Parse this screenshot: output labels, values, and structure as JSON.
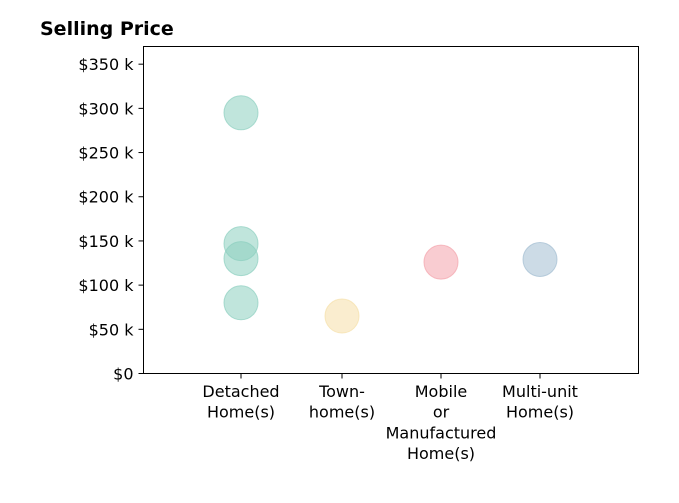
{
  "chart_data": {
    "type": "scatter",
    "title": "Selling Price",
    "xlabel": "",
    "ylabel": "",
    "ylim": [
      0,
      370000
    ],
    "y_ticks": [
      {
        "value": 0,
        "label": "$0"
      },
      {
        "value": 50000,
        "label": "$50 k"
      },
      {
        "value": 100000,
        "label": "$100 k"
      },
      {
        "value": 150000,
        "label": "$150 k"
      },
      {
        "value": 200000,
        "label": "$200 k"
      },
      {
        "value": 250000,
        "label": "$250 k"
      },
      {
        "value": 300000,
        "label": "$300 k"
      },
      {
        "value": 350000,
        "label": "$350 k"
      }
    ],
    "categories": [
      {
        "key": "detached",
        "lines": [
          "Detached",
          "Home(s)"
        ],
        "color": "#8ccfbf"
      },
      {
        "key": "townhome",
        "lines": [
          "Town-",
          "home(s)"
        ],
        "color": "#f5dfa8"
      },
      {
        "key": "mobile",
        "lines": [
          "Mobile",
          "or",
          "Manufactured",
          "Home(s)"
        ],
        "color": "#f4a3ab"
      },
      {
        "key": "multiunit",
        "lines": [
          "Multi-unit",
          "Home(s)"
        ],
        "color": "#a3bdd1"
      }
    ],
    "points": [
      {
        "category": "detached",
        "y": 295000
      },
      {
        "category": "detached",
        "y": 147000
      },
      {
        "category": "detached",
        "y": 130000
      },
      {
        "category": "detached",
        "y": 80000
      },
      {
        "category": "townhome",
        "y": 65000
      },
      {
        "category": "mobile",
        "y": 126000
      },
      {
        "category": "multiunit",
        "y": 129000
      }
    ],
    "grid": false,
    "legend": "none"
  }
}
